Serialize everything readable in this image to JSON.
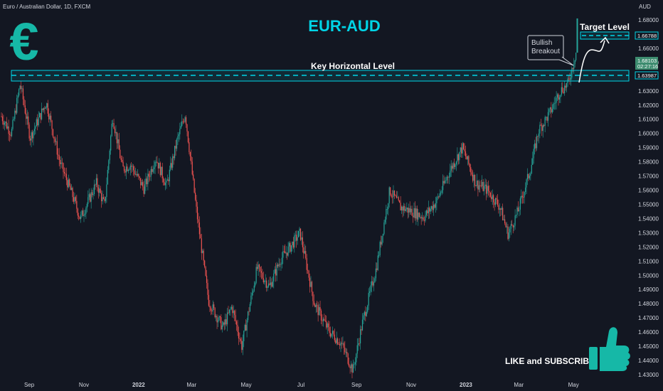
{
  "header": {
    "symbol": "Euro / Australian Dollar, 1D, FXCM",
    "currency": "AUD"
  },
  "colors": {
    "background": "#131722",
    "up": "#26a69a",
    "down": "#ef5350",
    "accent": "#00d4e6",
    "price_tag_bg": "#3d8c6f",
    "text": "#d1d4dc",
    "white": "#ffffff"
  },
  "icons": [
    "euro-icon",
    "thumbs-up-icon"
  ],
  "annotations": {
    "title": "EUR-AUD",
    "key_level_label": "Key Horizontal Level",
    "target_level_label": "Target Level",
    "breakout_label_line1": "Bullish",
    "breakout_label_line2": "Breakout",
    "cta": "LIKE and SUBSCRIBE"
  },
  "price_tags": {
    "target": "1.66788",
    "current": "1.68103",
    "countdown": "02:27:16",
    "key": "1.63987"
  },
  "chart_data": {
    "type": "candlestick",
    "title": "EUR-AUD",
    "symbol": "Euro / Australian Dollar, 1D, FXCM",
    "ylim": [
      1.425,
      1.69
    ],
    "y_scale": "linear",
    "y_ticks": [
      1.43,
      1.44,
      1.45,
      1.46,
      1.47,
      1.48,
      1.49,
      1.5,
      1.51,
      1.52,
      1.53,
      1.54,
      1.55,
      1.56,
      1.57,
      1.58,
      1.59,
      1.6,
      1.61,
      1.62,
      1.63,
      1.64,
      1.65,
      1.66,
      1.67,
      1.68
    ],
    "y_tick_labels": [
      "1.43000",
      "1.44000",
      "1.45000",
      "1.46000",
      "1.47000",
      "1.48000",
      "1.49000",
      "1.50000",
      "1.51000",
      "1.52000",
      "1.53000",
      "1.54000",
      "1.55000",
      "1.56000",
      "1.57000",
      "1.58000",
      "1.59000",
      "1.60000",
      "1.61000",
      "1.62000",
      "1.63000",
      "1.64000",
      "1.65000",
      "1.66000",
      "1.67000",
      "1.68000"
    ],
    "x_labels": [
      "Sep",
      "Nov",
      "2022",
      "Mar",
      "May",
      "Jul",
      "Sep",
      "Nov",
      "2023",
      "Mar",
      "May"
    ],
    "key_level": 1.63987,
    "target_level": 1.66788,
    "current_price": 1.68103,
    "grid": false,
    "close_path": [
      [
        "2021-08-01",
        1.612
      ],
      [
        "2021-08-12",
        1.6
      ],
      [
        "2021-08-22",
        1.635
      ],
      [
        "2021-09-02",
        1.597
      ],
      [
        "2021-09-20",
        1.622
      ],
      [
        "2021-10-05",
        1.58
      ],
      [
        "2021-10-20",
        1.555
      ],
      [
        "2021-10-28",
        1.54
      ],
      [
        "2021-11-15",
        1.565
      ],
      [
        "2021-11-24",
        1.549
      ],
      [
        "2021-12-03",
        1.612
      ],
      [
        "2021-12-14",
        1.575
      ],
      [
        "2021-12-23",
        1.578
      ],
      [
        "2022-01-07",
        1.561
      ],
      [
        "2022-01-20",
        1.583
      ],
      [
        "2022-02-01",
        1.563
      ],
      [
        "2022-02-13",
        1.595
      ],
      [
        "2022-02-22",
        1.614
      ],
      [
        "2022-03-06",
        1.548
      ],
      [
        "2022-03-20",
        1.482
      ],
      [
        "2022-04-05",
        1.463
      ],
      [
        "2022-04-15",
        1.478
      ],
      [
        "2022-04-26",
        1.45
      ],
      [
        "2022-05-13",
        1.505
      ],
      [
        "2022-05-27",
        1.492
      ],
      [
        "2022-06-08",
        1.511
      ],
      [
        "2022-06-19",
        1.52
      ],
      [
        "2022-06-30",
        1.53
      ],
      [
        "2022-07-16",
        1.48
      ],
      [
        "2022-08-01",
        1.461
      ],
      [
        "2022-08-15",
        1.452
      ],
      [
        "2022-08-28",
        1.433
      ],
      [
        "2022-09-07",
        1.465
      ],
      [
        "2022-09-23",
        1.505
      ],
      [
        "2022-10-08",
        1.56
      ],
      [
        "2022-10-20",
        1.548
      ],
      [
        "2022-11-02",
        1.545
      ],
      [
        "2022-11-15",
        1.541
      ],
      [
        "2022-11-29",
        1.552
      ],
      [
        "2022-12-15",
        1.575
      ],
      [
        "2022-12-28",
        1.59
      ],
      [
        "2023-01-12",
        1.565
      ],
      [
        "2023-01-25",
        1.56
      ],
      [
        "2023-02-08",
        1.548
      ],
      [
        "2023-02-17",
        1.529
      ],
      [
        "2023-02-28",
        1.545
      ],
      [
        "2023-03-14",
        1.575
      ],
      [
        "2023-03-23",
        1.602
      ],
      [
        "2023-04-05",
        1.615
      ],
      [
        "2023-04-16",
        1.63
      ],
      [
        "2023-04-25",
        1.635
      ],
      [
        "2023-05-04",
        1.658
      ]
    ]
  }
}
